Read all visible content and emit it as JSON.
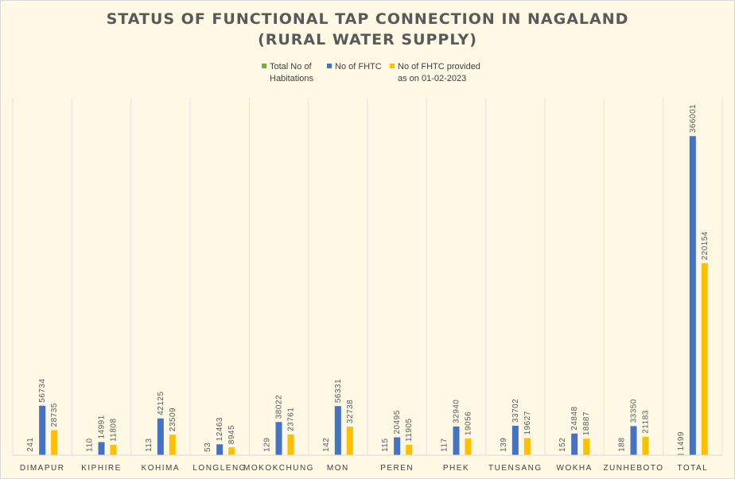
{
  "chart_data": {
    "type": "bar",
    "title": [
      "STATUS OF FUNCTIONAL TAP CONNECTION IN NAGALAND",
      "(RURAL WATER SUPPLY)"
    ],
    "categories": [
      "DIMAPUR",
      "KIPHIRE",
      "KOHIMA",
      "LONGLENG",
      "MOKOKCHUNG",
      "MON",
      "PEREN",
      "PHEK",
      "TUENSANG",
      "WOKHA",
      "ZUNHEBOTO",
      "TOTAL"
    ],
    "series": [
      {
        "name": "Total No of Habitations",
        "color": "#70ad47",
        "values": [
          241,
          110,
          113,
          53,
          129,
          142,
          115,
          117,
          139,
          152,
          188,
          1499
        ]
      },
      {
        "name": "No of FHTC",
        "color": "#4472c4",
        "values": [
          56734,
          14991,
          42125,
          12463,
          38022,
          56331,
          20495,
          32940,
          33702,
          24848,
          33350,
          366001
        ]
      },
      {
        "name": "No of FHTC provided as on 01-02-2023",
        "color": "#ffc000",
        "values": [
          28735,
          11808,
          23509,
          8945,
          23761,
          32738,
          11905,
          19056,
          19627,
          18887,
          21183,
          220154
        ]
      }
    ],
    "legend_lines": [
      [
        "Total No of",
        "Habitations"
      ],
      [
        "No of FHTC"
      ],
      [
        "No of FHTC provided",
        "as on 01-02-2023"
      ]
    ],
    "ylim": [
      0,
      410000
    ],
    "xlabel": "",
    "ylabel": "",
    "data_labels": true,
    "legend_position": "top",
    "grid": "vertical category separators"
  }
}
